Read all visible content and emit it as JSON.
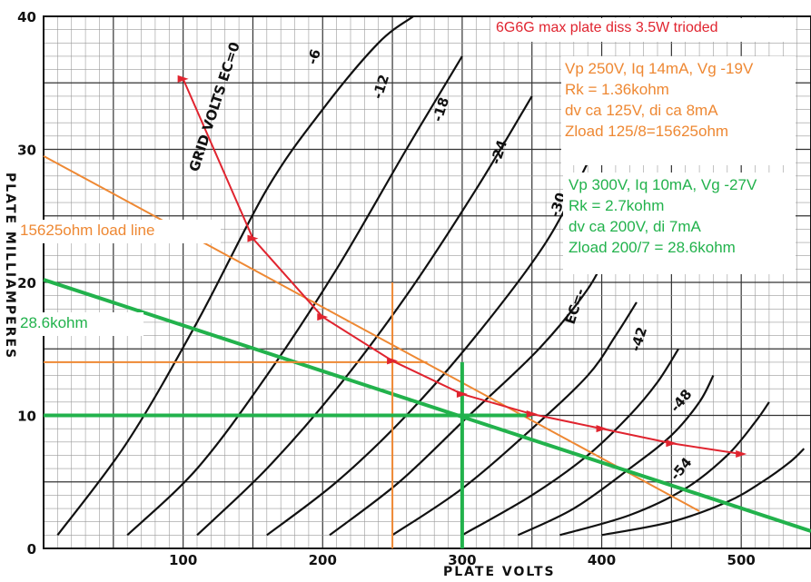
{
  "chart_data": {
    "type": "line",
    "xlabel": "PLATE VOLTS",
    "ylabel": "PLATE MILLIAMPERES",
    "xlim": [
      0,
      550
    ],
    "ylim": [
      0,
      40
    ],
    "x_ticks": [
      "100",
      "200",
      "300",
      "400",
      "500"
    ],
    "y_ticks": [
      "0",
      "10",
      "20",
      "30",
      "40"
    ],
    "grid": true,
    "series": [
      {
        "name": "GRID VOLTS EC=0",
        "x": [
          10,
          60,
          110,
          160,
          200,
          240,
          265
        ],
        "y": [
          1,
          8,
          17,
          27,
          33,
          38,
          40
        ]
      },
      {
        "name": "-6",
        "x": [
          60,
          110,
          160,
          210,
          260,
          300
        ],
        "y": [
          1,
          6,
          13,
          21,
          30,
          37
        ]
      },
      {
        "name": "-12",
        "x": [
          110,
          160,
          210,
          260,
          310,
          350
        ],
        "y": [
          1,
          6,
          12,
          19,
          27,
          34
        ]
      },
      {
        "name": "-18",
        "x": [
          160,
          210,
          260,
          310,
          360,
          390
        ],
        "y": [
          1,
          5,
          10,
          16,
          23,
          29
        ]
      },
      {
        "name": "-24",
        "x": [
          205,
          255,
          305,
          355,
          390,
          405
        ],
        "y": [
          1,
          5,
          10,
          15,
          19.5,
          22.5
        ]
      },
      {
        "name": "-30",
        "x": [
          250,
          300,
          350,
          390,
          410,
          425
        ],
        "y": [
          1,
          4.5,
          9,
          13,
          16,
          18.5
        ]
      },
      {
        "name": "EC=-",
        "x": [
          300,
          350,
          390,
          420,
          440,
          455
        ],
        "y": [
          1,
          4,
          7,
          10,
          12.5,
          15
        ]
      },
      {
        "name": "-42",
        "x": [
          340,
          380,
          420,
          450,
          470,
          480
        ],
        "y": [
          1,
          3,
          6,
          8.5,
          11,
          13
        ]
      },
      {
        "name": "-48",
        "x": [
          370,
          420,
          460,
          490,
          510,
          520
        ],
        "y": [
          1,
          2.5,
          4.5,
          7,
          9.5,
          11
        ]
      },
      {
        "name": "-54",
        "x": [
          400,
          450,
          490,
          515,
          535,
          545
        ],
        "y": [
          1,
          2,
          3.5,
          5,
          6.5,
          7.5
        ]
      }
    ],
    "load_lines": [
      {
        "name": "15625ohm load line",
        "color": "#ee8833",
        "x": [
          0,
          470
        ],
        "y": [
          29.5,
          2.8
        ]
      },
      {
        "name": "28.6kohm",
        "color": "#22b24c",
        "x": [
          0,
          550
        ],
        "y": [
          20.2,
          1.3
        ]
      }
    ],
    "quiescent_lines": [
      {
        "color": "#ee8833",
        "vp": 250,
        "iq": 14
      },
      {
        "color": "#22b24c",
        "vp": 300,
        "iq": 10
      }
    ],
    "dissipation_curve": {
      "color": "#e0242f",
      "x": [
        100,
        150,
        200,
        250,
        300,
        350,
        400,
        450,
        500
      ],
      "y": [
        35.3,
        23.3,
        17.4,
        14.1,
        11.6,
        10.1,
        9.0,
        7.9,
        7.1
      ]
    },
    "annotations": {
      "title": "6G6G max plate diss 3.5W trioded",
      "orange_lines": [
        "Vp 250V, Iq 14mA, Vg -19V",
        "Rk = 1.36kohm",
        "dv ca 125V, di ca 8mA",
        "Zload 125/8=15625ohm"
      ],
      "green_lines": [
        "Vp 300V, Iq 10mA, Vg -27V",
        "Rk = 2.7kohm",
        "dv ca 200V, di 7mA",
        "Zload 200/7 = 28.6kohm"
      ],
      "orange_load_label": "15625ohm load line",
      "green_load_label": "28.6kohm"
    }
  },
  "colors": {
    "orange": "#ee8833",
    "green": "#22b24c",
    "red": "#e0242f",
    "grid_minor": "#9a9a9a",
    "grid_major": "#333333"
  }
}
